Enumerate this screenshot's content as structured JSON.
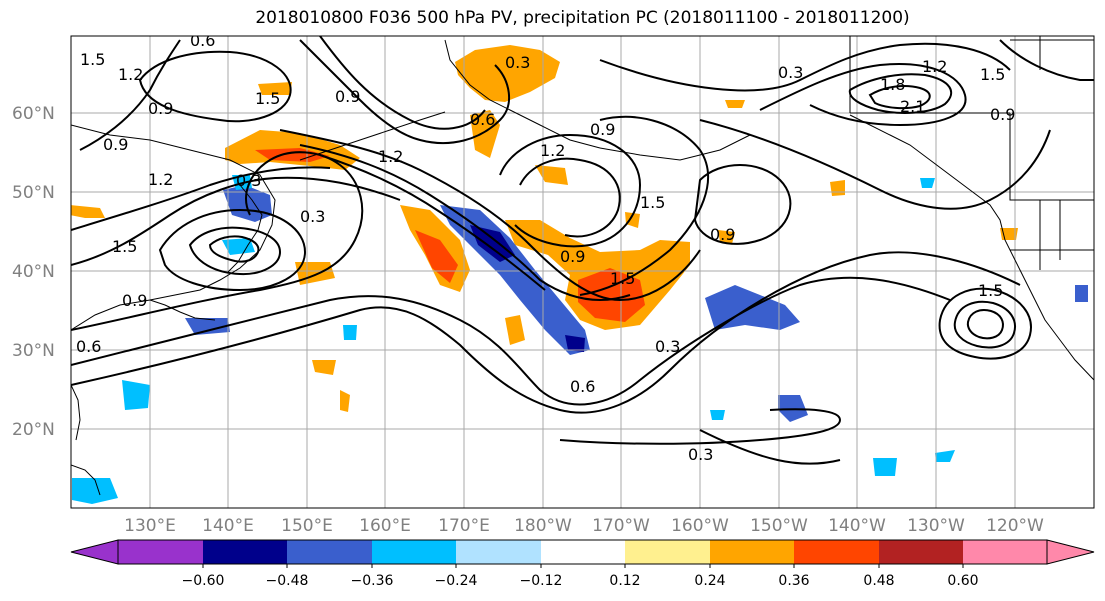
{
  "title": "2018010800 F036 500 hPa PV, precipitation PC (2018011100 - 2018011200)",
  "map": {
    "lat_labels": [
      "60°N",
      "50°N",
      "40°N",
      "30°N",
      "20°N"
    ],
    "lon_labels": [
      "130°E",
      "140°E",
      "150°E",
      "160°E",
      "170°E",
      "180°W",
      "170°W",
      "160°W",
      "150°W",
      "140°W",
      "130°W",
      "120°W"
    ],
    "contour_labels": [
      "0.6",
      "1.5",
      "1.2",
      "0.9",
      "1.5",
      "0.3",
      "0.6",
      "0.3",
      "0.9",
      "1.2",
      "1.2",
      "1.5",
      "0.9",
      "0.3",
      "1.8",
      "1.2",
      "2.1",
      "1.5",
      "0.9",
      "0.9",
      "1.2",
      "0.3",
      "1.5",
      "0.9",
      "0.9",
      "1.5",
      "0.3",
      "0.6",
      "0.9",
      "1.5",
      "0.6",
      "0.3"
    ]
  },
  "colorbar": {
    "ticks": [
      "−0.60",
      "−0.48",
      "−0.36",
      "−0.24",
      "−0.12",
      "0.12",
      "0.24",
      "0.36",
      "0.48",
      "0.60"
    ],
    "colors": [
      "#9932cc",
      "#00008b",
      "#3a5fcd",
      "#00bfff",
      "#b0e2ff",
      "#ffffff",
      "#fff08f",
      "#ffa500",
      "#ff4500",
      "#b22222",
      "#ff88aa"
    ]
  }
}
